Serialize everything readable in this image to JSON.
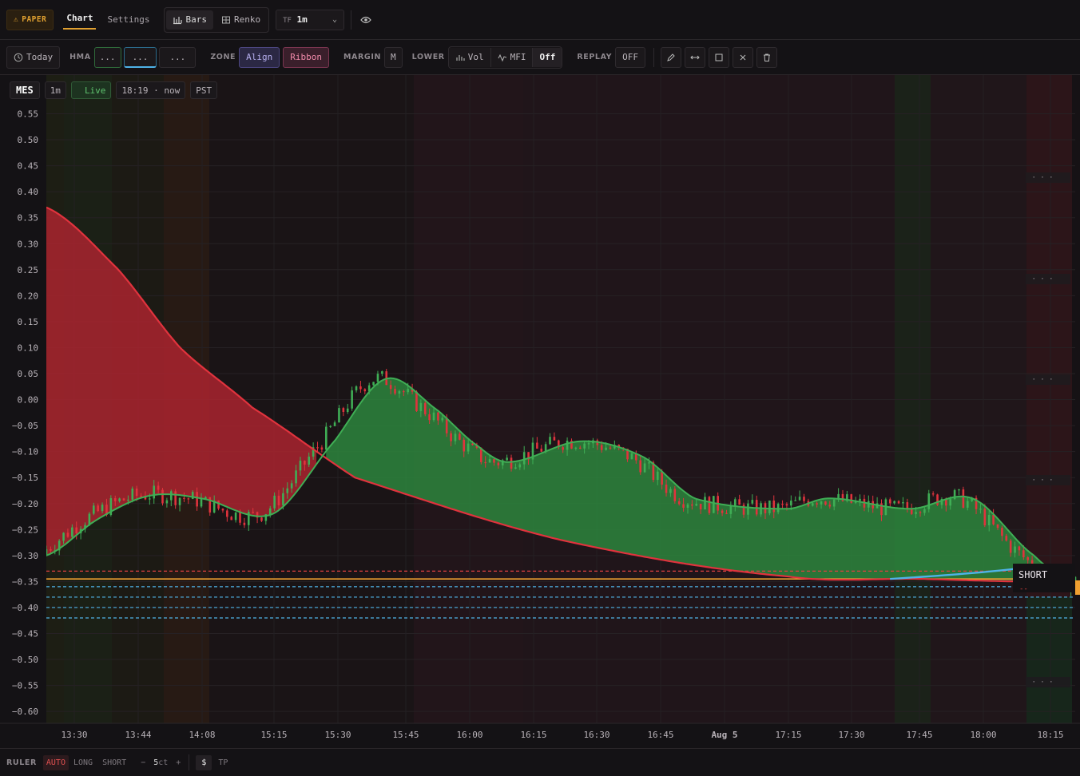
{
  "topbar": {
    "paper_label": "PAPER",
    "tabs": [
      {
        "label": "Chart",
        "active": true
      },
      {
        "label": "Settings",
        "active": false
      }
    ],
    "chart_types": [
      {
        "label": "Bars",
        "active": true
      },
      {
        "label": "Renko",
        "active": false
      }
    ],
    "tf_prefix": "TF",
    "tf_value": "1m"
  },
  "toolbar": {
    "today_label": "Today",
    "hma_label": "HMA",
    "hma_slots": [
      "...",
      "...",
      "..."
    ],
    "zone_label": "ZONE",
    "zone_align": "Align",
    "zone_ribbon": "Ribbon",
    "margin_label": "MARGIN",
    "margin_value": "M",
    "lower_label": "LOWER",
    "lower_vol": "Vol",
    "lower_mfi": "MFI",
    "lower_off": "Off",
    "replay_label": "REPLAY",
    "replay_value": "OFF"
  },
  "legend": {
    "symbol": "MES",
    "tf": "1m",
    "live": "Live",
    "time": "18:19 · now",
    "tz": "PST"
  },
  "bottombar": {
    "ruler_label": "RULER",
    "auto": "AUTO",
    "long": "LONG",
    "short": "SHORT",
    "minus": "−",
    "qty_num": "5",
    "qty_unit": "ct",
    "plus": "+",
    "dollar": "$",
    "tp": "TP"
  },
  "chart_data": {
    "type": "candlestick",
    "y_ticks": [
      "0.55",
      "0.50",
      "0.45",
      "0.40",
      "0.35",
      "0.30",
      "0.25",
      "0.20",
      "0.15",
      "0.10",
      "0.05",
      "0.00",
      "−0.05",
      "−0.10",
      "−0.15",
      "−0.20",
      "−0.25",
      "−0.30",
      "−0.35",
      "−0.40",
      "−0.45",
      "−0.50",
      "−0.55",
      "−0.60"
    ],
    "ylim": [
      -0.6,
      0.55
    ],
    "x_ticks": [
      "13:30",
      "13:44",
      "14:08",
      "15:15",
      "15:30",
      "15:45",
      "16:00",
      "16:15",
      "16:30",
      "16:45",
      "Aug 5",
      "17:15",
      "17:30",
      "17:45",
      "18:00",
      "18:15"
    ],
    "colors": {
      "up": "#3fae55",
      "down": "#e0333d",
      "fast_line": "#3fae55",
      "slow_line": "#e0333d",
      "level_line": "#4fb3e8",
      "short_level": "#e04040",
      "orange_level": "#f0a030"
    },
    "slow_line_anchors": [
      [
        0,
        0.37
      ],
      [
        0.07,
        0.25
      ],
      [
        0.13,
        0.1
      ],
      [
        0.2,
        -0.015
      ],
      [
        0.3,
        -0.15
      ],
      [
        0.5,
        -0.27
      ],
      [
        0.72,
        -0.34
      ],
      [
        0.85,
        -0.345
      ],
      [
        0.95,
        -0.35
      ],
      [
        1.0,
        -0.35
      ]
    ],
    "fast_line_anchors": [
      [
        0,
        -0.3
      ],
      [
        0.05,
        -0.23
      ],
      [
        0.1,
        -0.185
      ],
      [
        0.15,
        -0.19
      ],
      [
        0.22,
        -0.22
      ],
      [
        0.28,
        -0.08
      ],
      [
        0.33,
        0.04
      ],
      [
        0.38,
        -0.02
      ],
      [
        0.42,
        -0.09
      ],
      [
        0.45,
        -0.12
      ],
      [
        0.52,
        -0.08
      ],
      [
        0.58,
        -0.11
      ],
      [
        0.63,
        -0.19
      ],
      [
        0.72,
        -0.21
      ],
      [
        0.76,
        -0.19
      ],
      [
        0.84,
        -0.21
      ],
      [
        0.9,
        -0.19
      ],
      [
        0.96,
        -0.3
      ],
      [
        1.0,
        -0.35
      ]
    ],
    "levels": [
      {
        "value": -0.33,
        "style": "dashed",
        "color": "#e04040"
      },
      {
        "value": -0.345,
        "style": "solid",
        "color": "#f0a030"
      },
      {
        "value": -0.36,
        "style": "dashed",
        "color": "#4fb3e8"
      },
      {
        "value": -0.38,
        "style": "dashed",
        "color": "#4fb3e8"
      },
      {
        "value": -0.4,
        "style": "dashed",
        "color": "#4fb3e8"
      },
      {
        "value": -0.42,
        "style": "dashed",
        "color": "#4fb3e8"
      }
    ],
    "short_label": "SHORT",
    "short_sub": "--",
    "side_dots": [
      "· · ·",
      "· · ·",
      "· · ·",
      "· · ·",
      "· · ·"
    ]
  }
}
